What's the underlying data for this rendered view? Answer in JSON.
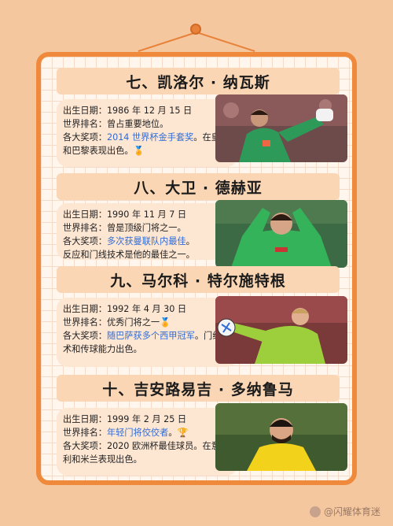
{
  "players": [
    {
      "title": "七、凯洛尔 · 纳瓦斯",
      "birth": "出生日期：1986 年 12 月 15 日",
      "rank": "世界排名：曾占重要地位。",
      "awards_prefix": "各大奖项：",
      "awards_highlight": "2014 世界杯金手套奖",
      "awards_suffix": "。在皇马和巴黎表现出色。",
      "emoji": "🏅",
      "emoji_after": "awards"
    },
    {
      "title": "八、大卫 · 德赫亚",
      "birth": "出生日期：1990 年 11 月 7 日",
      "rank": "世界排名：曾是顶级门将之一。",
      "awards_prefix": "各大奖项：",
      "awards_highlight": "多次获曼联队内最佳",
      "awards_suffix": "。",
      "extra": "反应和门线技术是他的最佳之一。"
    },
    {
      "title": "九、马尔科 · 特尔施特根",
      "birth": "出生日期：1992 年 4 月 30 日",
      "rank": "世界排名：优秀门将之一",
      "rank_emoji": "🏅",
      "awards_prefix": "各大奖项：",
      "awards_highlight": "随巴萨获多个西甲冠军",
      "awards_suffix": "。门线技术和传球能力出色。"
    },
    {
      "title": "十、吉安路易吉 · 多纳鲁马",
      "birth": "出生日期：1999 年 2 月 25 日",
      "rank_prefix": "世界排名：",
      "rank_highlight": "年轻门将佼佼者",
      "rank_suffix": "。",
      "rank_emoji": "🏆",
      "awards_prefix": "各大奖项：",
      "awards_plain": "2020 欧洲杯最佳球员。在意大利和米兰表现出色。"
    }
  ],
  "watermark": "@闪耀体育迷",
  "colors": {
    "background": "#f4c79e",
    "frame": "#ef8a3c",
    "title_bar": "#fbd6b4",
    "highlight": "#2f6bd6"
  }
}
